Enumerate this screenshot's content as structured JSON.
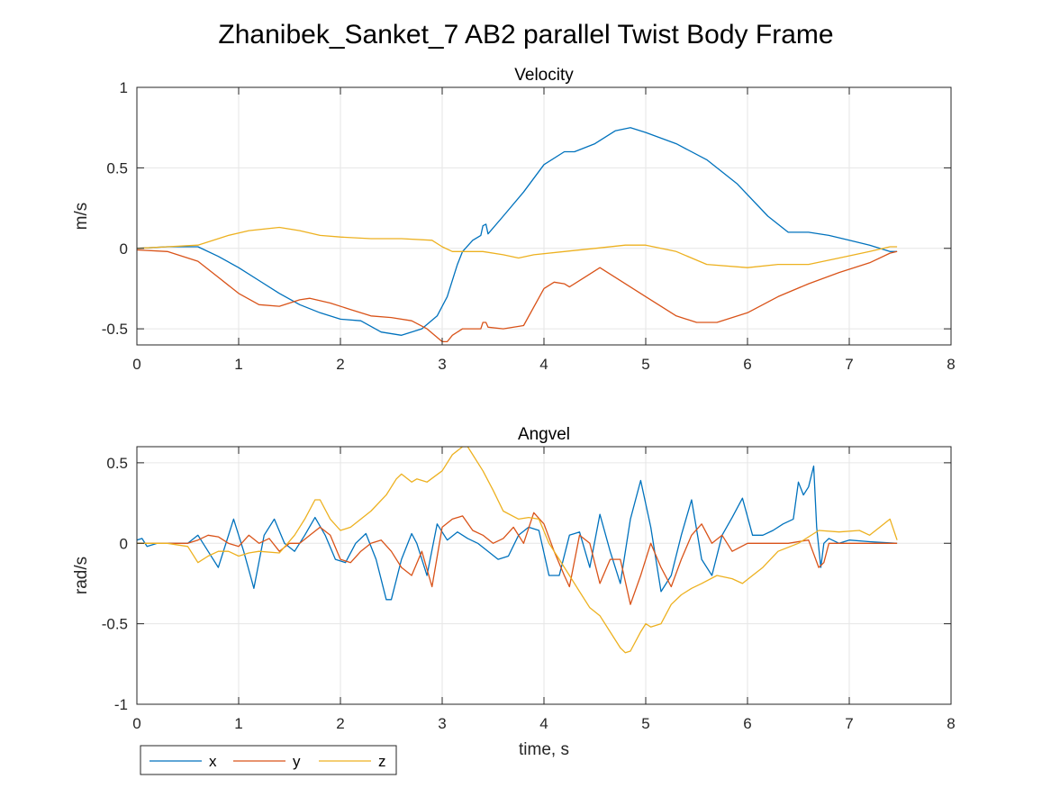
{
  "figure": {
    "title": "Zhanibek_Sanket_7 AB2 parallel Twist Body Frame"
  },
  "legend": {
    "placement": "bottom-left",
    "entries": [
      "x",
      "y",
      "z"
    ]
  },
  "colors": {
    "x": "#0072BD",
    "y": "#D95319",
    "z": "#EDB120",
    "grid": "#E6E6E6",
    "axis": "#262626"
  },
  "chart_data": [
    {
      "type": "line",
      "title": "Velocity",
      "xlabel": "",
      "ylabel": "m/s",
      "xlim": [
        0,
        8
      ],
      "ylim": [
        -0.6,
        1
      ],
      "xticks": [
        "0",
        "1",
        "2",
        "3",
        "4",
        "5",
        "6",
        "7",
        "8"
      ],
      "yticks": [
        "-0.5",
        "0",
        "0.5",
        "1"
      ],
      "ytick_values": [
        -0.5,
        0,
        0.5,
        1
      ],
      "grid": true,
      "series": [
        {
          "name": "x",
          "x": [
            0,
            0.3,
            0.6,
            0.8,
            1.0,
            1.2,
            1.4,
            1.6,
            1.8,
            2.0,
            2.2,
            2.4,
            2.6,
            2.8,
            2.95,
            3.05,
            3.15,
            3.2,
            3.3,
            3.38,
            3.4,
            3.43,
            3.45,
            3.6,
            3.8,
            4.0,
            4.2,
            4.3,
            4.5,
            4.7,
            4.85,
            5.0,
            5.3,
            5.6,
            5.9,
            6.2,
            6.4,
            6.6,
            6.8,
            7.0,
            7.2,
            7.4,
            7.47
          ],
          "y": [
            0,
            0.01,
            0.01,
            -0.05,
            -0.12,
            -0.2,
            -0.28,
            -0.35,
            -0.4,
            -0.44,
            -0.45,
            -0.52,
            -0.54,
            -0.5,
            -0.42,
            -0.3,
            -0.1,
            -0.02,
            0.05,
            0.08,
            0.14,
            0.15,
            0.09,
            0.2,
            0.35,
            0.52,
            0.6,
            0.6,
            0.65,
            0.73,
            0.75,
            0.72,
            0.65,
            0.55,
            0.4,
            0.2,
            0.1,
            0.1,
            0.08,
            0.05,
            0.02,
            -0.02,
            -0.02
          ]
        },
        {
          "name": "y",
          "x": [
            0,
            0.3,
            0.6,
            0.8,
            1.0,
            1.2,
            1.4,
            1.6,
            1.7,
            1.9,
            2.1,
            2.3,
            2.5,
            2.7,
            2.85,
            3.0,
            3.05,
            3.1,
            3.2,
            3.3,
            3.38,
            3.4,
            3.43,
            3.45,
            3.6,
            3.8,
            4.0,
            4.1,
            4.2,
            4.25,
            4.4,
            4.55,
            4.7,
            5.0,
            5.3,
            5.5,
            5.7,
            6.0,
            6.3,
            6.6,
            6.9,
            7.2,
            7.4,
            7.47
          ],
          "y": [
            -0.01,
            -0.02,
            -0.08,
            -0.18,
            -0.28,
            -0.35,
            -0.36,
            -0.32,
            -0.31,
            -0.34,
            -0.38,
            -0.42,
            -0.43,
            -0.45,
            -0.5,
            -0.58,
            -0.58,
            -0.54,
            -0.5,
            -0.5,
            -0.5,
            -0.46,
            -0.46,
            -0.49,
            -0.5,
            -0.48,
            -0.25,
            -0.21,
            -0.22,
            -0.24,
            -0.18,
            -0.12,
            -0.18,
            -0.3,
            -0.42,
            -0.46,
            -0.46,
            -0.4,
            -0.3,
            -0.22,
            -0.15,
            -0.09,
            -0.03,
            -0.02
          ]
        },
        {
          "name": "z",
          "x": [
            0,
            0.3,
            0.6,
            0.9,
            1.1,
            1.4,
            1.6,
            1.8,
            2.0,
            2.3,
            2.6,
            2.9,
            3.0,
            3.1,
            3.2,
            3.4,
            3.6,
            3.75,
            3.9,
            4.2,
            4.5,
            4.8,
            5.0,
            5.3,
            5.6,
            6.0,
            6.3,
            6.6,
            6.9,
            7.2,
            7.4,
            7.47
          ],
          "y": [
            0,
            0.01,
            0.02,
            0.08,
            0.11,
            0.13,
            0.11,
            0.08,
            0.07,
            0.06,
            0.06,
            0.05,
            0.01,
            -0.02,
            -0.02,
            -0.02,
            -0.04,
            -0.06,
            -0.04,
            -0.02,
            0,
            0.02,
            0.02,
            -0.02,
            -0.1,
            -0.12,
            -0.1,
            -0.1,
            -0.06,
            -0.02,
            0.01,
            0.01
          ]
        }
      ]
    },
    {
      "type": "line",
      "title": "Angvel",
      "xlabel": "time, s",
      "ylabel": "rad/s",
      "xlim": [
        0,
        8
      ],
      "ylim": [
        -1,
        0.6
      ],
      "xticks": [
        "0",
        "1",
        "2",
        "3",
        "4",
        "5",
        "6",
        "7",
        "8"
      ],
      "yticks": [
        "-1",
        "-0.5",
        "0",
        "0.5"
      ],
      "ytick_values": [
        -1,
        -0.5,
        0,
        0.5
      ],
      "grid": true,
      "series": [
        {
          "name": "x",
          "x": [
            0,
            0.05,
            0.1,
            0.2,
            0.3,
            0.4,
            0.5,
            0.6,
            0.7,
            0.8,
            0.95,
            1.05,
            1.15,
            1.25,
            1.35,
            1.45,
            1.55,
            1.65,
            1.75,
            1.85,
            1.95,
            2.05,
            2.15,
            2.25,
            2.35,
            2.45,
            2.5,
            2.6,
            2.7,
            2.75,
            2.85,
            2.95,
            3.05,
            3.15,
            3.25,
            3.35,
            3.45,
            3.55,
            3.65,
            3.75,
            3.85,
            3.95,
            4.05,
            4.15,
            4.25,
            4.35,
            4.45,
            4.55,
            4.65,
            4.75,
            4.85,
            4.95,
            5.05,
            5.15,
            5.25,
            5.35,
            5.45,
            5.55,
            5.65,
            5.75,
            5.85,
            5.95,
            6.05,
            6.15,
            6.25,
            6.35,
            6.45,
            6.5,
            6.55,
            6.6,
            6.65,
            6.68,
            6.72,
            6.75,
            6.8,
            6.9,
            7.0,
            7.2,
            7.47
          ],
          "y": [
            0.02,
            0.03,
            -0.02,
            0.0,
            0.0,
            0.0,
            0.0,
            0.05,
            -0.05,
            -0.15,
            0.15,
            -0.05,
            -0.28,
            0.05,
            0.15,
            0.0,
            -0.05,
            0.05,
            0.16,
            0.05,
            -0.1,
            -0.12,
            0.0,
            0.06,
            -0.1,
            -0.35,
            -0.35,
            -0.1,
            0.06,
            0.0,
            -0.2,
            0.12,
            0.02,
            0.07,
            0.03,
            0.0,
            -0.05,
            -0.1,
            -0.08,
            0.05,
            0.1,
            0.08,
            -0.2,
            -0.2,
            0.05,
            0.07,
            -0.15,
            0.18,
            -0.05,
            -0.25,
            0.15,
            0.39,
            0.1,
            -0.3,
            -0.2,
            0.05,
            0.27,
            -0.1,
            -0.2,
            0.05,
            0.16,
            0.28,
            0.05,
            0.05,
            0.08,
            0.12,
            0.15,
            0.38,
            0.3,
            0.35,
            0.48,
            0.1,
            -0.15,
            0.0,
            0.03,
            0.0,
            0.02,
            0.01,
            0.0
          ]
        },
        {
          "name": "y",
          "x": [
            0,
            0.2,
            0.4,
            0.5,
            0.6,
            0.7,
            0.8,
            0.9,
            1.0,
            1.1,
            1.2,
            1.3,
            1.4,
            1.5,
            1.6,
            1.7,
            1.8,
            1.9,
            2.0,
            2.1,
            2.2,
            2.3,
            2.4,
            2.5,
            2.6,
            2.7,
            2.8,
            2.9,
            3.0,
            3.1,
            3.2,
            3.3,
            3.4,
            3.5,
            3.6,
            3.7,
            3.8,
            3.9,
            4.0,
            4.1,
            4.2,
            4.25,
            4.35,
            4.45,
            4.55,
            4.65,
            4.75,
            4.85,
            4.95,
            5.05,
            5.15,
            5.25,
            5.35,
            5.45,
            5.55,
            5.65,
            5.75,
            5.85,
            6.0,
            6.2,
            6.4,
            6.6,
            6.7,
            6.75,
            6.8,
            7.0,
            7.2,
            7.47
          ],
          "y": [
            0.0,
            0.0,
            0.0,
            0.0,
            0.02,
            0.05,
            0.04,
            0.0,
            -0.02,
            0.05,
            0.0,
            0.03,
            -0.05,
            0.0,
            0.0,
            0.05,
            0.1,
            0.05,
            -0.1,
            -0.12,
            -0.05,
            0.0,
            0.02,
            -0.05,
            -0.15,
            -0.2,
            -0.05,
            -0.27,
            0.1,
            0.15,
            0.17,
            0.08,
            0.05,
            0.0,
            0.03,
            0.1,
            0.0,
            0.19,
            0.12,
            -0.05,
            -0.2,
            -0.27,
            0.05,
            0.0,
            -0.25,
            -0.1,
            -0.1,
            -0.38,
            -0.2,
            0.0,
            -0.15,
            -0.27,
            -0.1,
            0.05,
            0.12,
            0.0,
            0.05,
            -0.05,
            0.0,
            0.0,
            0.0,
            0.02,
            -0.15,
            -0.12,
            0.0,
            0.0,
            0.0,
            0.0
          ]
        },
        {
          "name": "z",
          "x": [
            0,
            0.3,
            0.5,
            0.6,
            0.7,
            0.8,
            0.9,
            1.0,
            1.1,
            1.2,
            1.4,
            1.55,
            1.65,
            1.75,
            1.8,
            1.9,
            2.0,
            2.1,
            2.3,
            2.45,
            2.55,
            2.6,
            2.7,
            2.75,
            2.85,
            3.0,
            3.1,
            3.2,
            3.25,
            3.3,
            3.4,
            3.5,
            3.6,
            3.75,
            3.85,
            3.95,
            4.05,
            4.15,
            4.25,
            4.35,
            4.45,
            4.55,
            4.65,
            4.75,
            4.8,
            4.85,
            4.95,
            5.0,
            5.05,
            5.15,
            5.25,
            5.35,
            5.45,
            5.55,
            5.7,
            5.85,
            5.95,
            6.05,
            6.15,
            6.3,
            6.5,
            6.7,
            6.9,
            7.1,
            7.2,
            7.3,
            7.4,
            7.47
          ],
          "y": [
            0.0,
            0.0,
            -0.02,
            -0.12,
            -0.08,
            -0.05,
            -0.05,
            -0.08,
            -0.06,
            -0.05,
            -0.06,
            0.05,
            0.15,
            0.27,
            0.27,
            0.15,
            0.08,
            0.1,
            0.2,
            0.3,
            0.4,
            0.43,
            0.38,
            0.4,
            0.38,
            0.45,
            0.55,
            0.6,
            0.6,
            0.55,
            0.45,
            0.33,
            0.2,
            0.15,
            0.16,
            0.15,
            0.0,
            -0.1,
            -0.2,
            -0.3,
            -0.4,
            -0.45,
            -0.55,
            -0.65,
            -0.68,
            -0.67,
            -0.55,
            -0.5,
            -0.52,
            -0.5,
            -0.38,
            -0.32,
            -0.28,
            -0.25,
            -0.2,
            -0.22,
            -0.25,
            -0.2,
            -0.15,
            -0.05,
            0.0,
            0.08,
            0.07,
            0.08,
            0.05,
            0.1,
            0.15,
            0.02
          ]
        }
      ]
    }
  ]
}
